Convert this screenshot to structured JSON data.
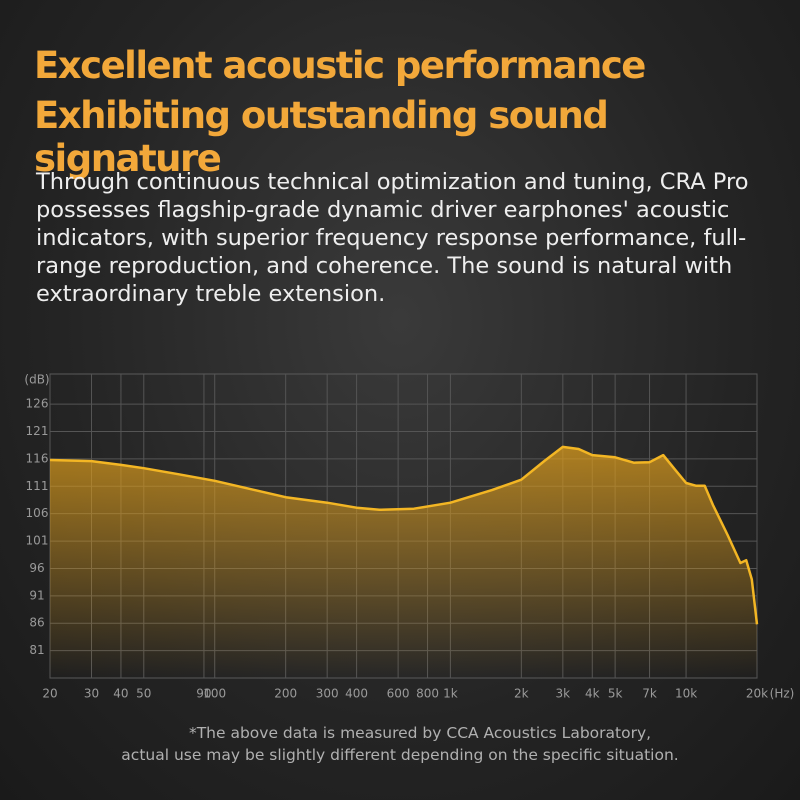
{
  "header": {
    "title_lines": [
      "Excellent acoustic performance",
      "Exhibiting outstanding sound signature"
    ],
    "body": "Through continuous technical optimization and tuning, CRA Pro possesses flagship-grade dynamic driver earphones' acoustic indicators, with superior frequency response performance, full-range reproduction, and coherence. The sound is natural with extraordinary treble extension."
  },
  "chart_data": {
    "type": "line",
    "x_label": "(Hz)",
    "y_label": "(dB)",
    "log_x": true,
    "grid": true,
    "color": "#f3b624",
    "x": [
      20,
      30,
      40,
      50,
      70,
      100,
      200,
      300,
      400,
      500,
      700,
      1000,
      1500,
      2000,
      2500,
      3000,
      3500,
      4000,
      5000,
      6000,
      7000,
      8000,
      9000,
      10000,
      11000,
      12000,
      13000,
      15000,
      17000,
      18000,
      19000,
      20000
    ],
    "values": [
      115.8,
      115.6,
      114.9,
      114.3,
      113.2,
      112,
      109,
      108,
      107.1,
      106.7,
      106.9,
      108,
      110.3,
      112.2,
      115.6,
      118.2,
      117.8,
      116.7,
      116.3,
      115.3,
      115.4,
      116.7,
      114,
      111.6,
      111.1,
      111.1,
      107.6,
      102.1,
      97,
      97.5,
      94,
      85.8
    ],
    "xlim": [
      20,
      20000
    ],
    "ylim": [
      76,
      131.5
    ],
    "xticks": [
      20,
      30,
      40,
      50,
      90,
      100,
      200,
      300,
      400,
      600,
      800,
      {
        "value": 1000,
        "label": "1k"
      },
      {
        "value": 2000,
        "label": "2k"
      },
      {
        "value": 3000,
        "label": "3k"
      },
      {
        "value": 4000,
        "label": "4k"
      },
      {
        "value": 5000,
        "label": "5k"
      },
      {
        "value": 7000,
        "label": "7k"
      },
      {
        "value": 10000,
        "label": "10k"
      },
      {
        "value": 20000,
        "label": "20k"
      }
    ],
    "yticks": [
      81,
      86,
      91,
      96,
      101,
      106,
      111,
      116,
      121,
      126
    ]
  },
  "footnote": [
    "*The above data is measured by CCA Acoustics Laboratory,",
    "actual use may be slightly different depending on the specific situation."
  ]
}
